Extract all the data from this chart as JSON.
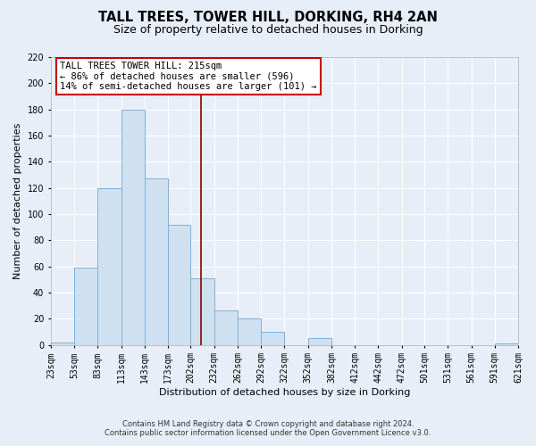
{
  "title": "TALL TREES, TOWER HILL, DORKING, RH4 2AN",
  "subtitle": "Size of property relative to detached houses in Dorking",
  "xlabel": "Distribution of detached houses by size in Dorking",
  "ylabel": "Number of detached properties",
  "bar_color": "#cfe0f0",
  "bar_edge_color": "#7fb0d8",
  "bins": [
    23,
    53,
    83,
    113,
    143,
    173,
    202,
    232,
    262,
    292,
    322,
    352,
    382,
    412,
    442,
    472,
    501,
    531,
    561,
    591,
    621
  ],
  "counts": [
    2,
    59,
    120,
    180,
    127,
    92,
    51,
    26,
    20,
    10,
    0,
    5,
    0,
    0,
    0,
    0,
    0,
    0,
    0,
    1
  ],
  "tick_labels": [
    "23sqm",
    "53sqm",
    "83sqm",
    "113sqm",
    "143sqm",
    "173sqm",
    "202sqm",
    "232sqm",
    "262sqm",
    "292sqm",
    "322sqm",
    "352sqm",
    "382sqm",
    "412sqm",
    "442sqm",
    "472sqm",
    "501sqm",
    "531sqm",
    "561sqm",
    "591sqm",
    "621sqm"
  ],
  "ylim": [
    0,
    220
  ],
  "yticks": [
    0,
    20,
    40,
    60,
    80,
    100,
    120,
    140,
    160,
    180,
    200,
    220
  ],
  "vline_x": 215,
  "vline_color": "#8b0000",
  "annotation_title": "TALL TREES TOWER HILL: 215sqm",
  "annotation_line1": "← 86% of detached houses are smaller (596)",
  "annotation_line2": "14% of semi-detached houses are larger (101) →",
  "footer1": "Contains HM Land Registry data © Crown copyright and database right 2024.",
  "footer2": "Contains public sector information licensed under the Open Government Licence v3.0.",
  "background_color": "#e8eef8",
  "grid_color": "#ffffff",
  "title_fontsize": 10.5,
  "subtitle_fontsize": 9,
  "axis_label_fontsize": 8,
  "tick_fontsize": 7,
  "footer_fontsize": 6
}
